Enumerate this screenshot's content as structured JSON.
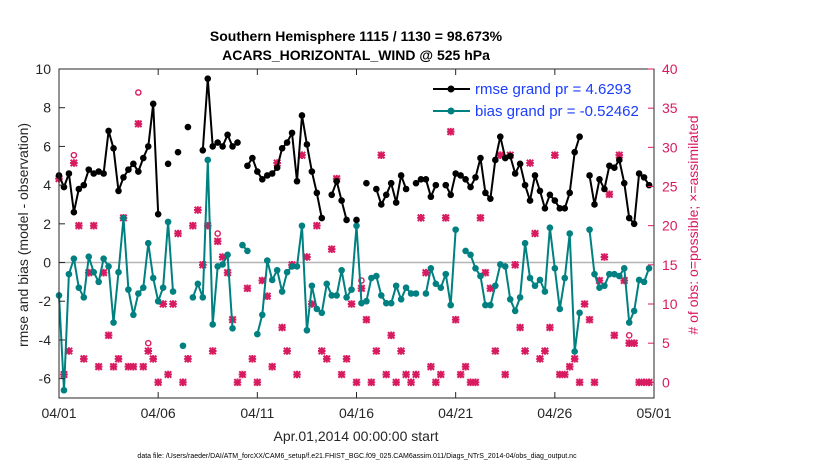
{
  "chart_data": {
    "type": "line",
    "title_line1": "Southern Hemisphere 1115 / 1130 = 98.673%",
    "title_line2": "ACARS_HORIZONTAL_WIND @ 525 hPa",
    "xlabel": "Apr.01,2014 00:00:00 start",
    "ylabel_left": "rmse and bias (model - observation)",
    "ylabel_right": "# of obs: o=possible; ×=assimilated",
    "footer": "data file: /Users/raeder/DAI/ATM_forcXX/CAM6_setup/f.e21.FHIST_BGC.f09_025.CAM6assim.011/Diags_NTrS_2014-04/obs_diag_output.nc",
    "xlim": [
      0,
      30
    ],
    "ylim_left": [
      -7,
      10
    ],
    "ylim_right": [
      -2,
      40
    ],
    "x_ticks": [
      0,
      5,
      10,
      15,
      20,
      25,
      30
    ],
    "x_tick_labels": [
      "04/01",
      "04/06",
      "04/11",
      "04/16",
      "04/21",
      "04/26",
      "05/01"
    ],
    "y_left_ticks": [
      -6,
      -4,
      -2,
      0,
      2,
      4,
      6,
      8,
      10
    ],
    "y_right_ticks": [
      0,
      5,
      10,
      15,
      20,
      25,
      30,
      35,
      40
    ],
    "grid": false,
    "legend_position": "top-right",
    "colors": {
      "rmse": "#000000",
      "bias": "#008080",
      "obs": "#d81b60",
      "zero_line": "#b4b4b4",
      "legend_text": "#1a3cff"
    },
    "series": [
      {
        "name": "rmse grand pr = 4.6293",
        "x": [
          0,
          0.25,
          0.5,
          0.75,
          1.0,
          1.25,
          1.5,
          1.75,
          2.0,
          2.25,
          2.5,
          2.75,
          3.0,
          3.25,
          3.5,
          3.75,
          4.0,
          4.25,
          4.5,
          4.75,
          5.0,
          5.25,
          5.5,
          5.75,
          6.0,
          6.25,
          6.5,
          6.75,
          7.0,
          7.25,
          7.5,
          7.75,
          8.0,
          8.25,
          8.5,
          8.75,
          9.0,
          9.25,
          9.5,
          9.75,
          10.0,
          10.25,
          10.5,
          10.75,
          11.0,
          11.25,
          11.5,
          11.75,
          12.0,
          12.25,
          12.5,
          12.75,
          13.0,
          13.25,
          13.5,
          13.75,
          14.0,
          14.25,
          14.5,
          14.75,
          15.0,
          15.25,
          15.5,
          15.75,
          16.0,
          16.25,
          16.5,
          16.75,
          17.0,
          17.25,
          17.5,
          17.75,
          18.0,
          18.25,
          18.5,
          18.75,
          19.0,
          19.25,
          19.5,
          19.75,
          20.0,
          20.25,
          20.5,
          20.75,
          21.0,
          21.25,
          21.5,
          21.75,
          22.0,
          22.25,
          22.5,
          22.75,
          23.0,
          23.25,
          23.5,
          23.75,
          24.0,
          24.25,
          24.5,
          24.75,
          25.0,
          25.25,
          25.5,
          25.75,
          26.0,
          26.25,
          26.5,
          26.75,
          27.0,
          27.25,
          27.5,
          27.75,
          28.0,
          28.25,
          28.5,
          28.75,
          29.0,
          29.25,
          29.5,
          29.75
        ],
        "y": [
          4.5,
          3.9,
          4.6,
          2.6,
          3.8,
          4.0,
          4.8,
          4.6,
          4.7,
          4.6,
          6.8,
          5.9,
          3.7,
          4.4,
          4.8,
          5.1,
          4.7,
          5.4,
          6.0,
          8.2,
          2.5,
          null,
          5.1,
          null,
          5.7,
          null,
          7.0,
          null,
          null,
          5.8,
          9.5,
          6.0,
          6.2,
          6.0,
          6.6,
          6.0,
          6.2,
          null,
          5.0,
          5.4,
          4.7,
          4.3,
          4.5,
          4.6,
          4.9,
          5.9,
          6.2,
          6.7,
          4.2,
          7.6,
          6.1,
          4.7,
          3.6,
          2.3,
          null,
          3.5,
          4.2,
          3.2,
          2.2,
          null,
          2.2,
          null,
          4.1,
          null,
          3.8,
          3.0,
          3.5,
          4.1,
          3.1,
          4.5,
          3.8,
          null,
          4.1,
          4.3,
          4.3,
          3.4,
          4.0,
          null,
          4.0,
          3.5,
          4.6,
          4.5,
          4.3,
          3.9,
          4.4,
          5.4,
          3.6,
          3.3,
          5.3,
          6.5,
          5.4,
          5.5,
          4.6,
          5.1,
          4.0,
          3.2,
          4.5,
          3.7,
          2.8,
          3.5,
          3.2,
          2.8,
          2.8,
          3.6,
          5.7,
          6.5,
          null,
          4.5,
          3.0,
          4.3,
          3.8,
          5.0,
          4.9,
          5.3,
          4.1,
          2.3,
          2.0,
          4.6,
          4.4,
          4.0
        ],
        "legend_label": "rmse grand pr = 4.6293"
      },
      {
        "name": "bias grand pr = -0.52462",
        "x": [
          0,
          0.25,
          0.5,
          0.75,
          1.0,
          1.25,
          1.5,
          1.75,
          2.0,
          2.25,
          2.5,
          2.75,
          3.0,
          3.25,
          3.5,
          3.75,
          4.0,
          4.25,
          4.5,
          4.75,
          5.0,
          5.25,
          5.5,
          5.75,
          6.0,
          6.25,
          6.5,
          6.75,
          7.0,
          7.25,
          7.5,
          7.75,
          8.0,
          8.25,
          8.5,
          8.75,
          9.0,
          9.25,
          9.5,
          9.75,
          10.0,
          10.25,
          10.5,
          10.75,
          11.0,
          11.25,
          11.5,
          11.75,
          12.0,
          12.25,
          12.5,
          12.75,
          13.0,
          13.25,
          13.5,
          13.75,
          14.0,
          14.25,
          14.5,
          14.75,
          15.0,
          15.25,
          15.5,
          15.75,
          16.0,
          16.25,
          16.5,
          16.75,
          17.0,
          17.25,
          17.5,
          17.75,
          18.0,
          18.25,
          18.5,
          18.75,
          19.0,
          19.25,
          19.5,
          19.75,
          20.0,
          20.25,
          20.5,
          20.75,
          21.0,
          21.25,
          21.5,
          21.75,
          22.0,
          22.25,
          22.5,
          22.75,
          23.0,
          23.25,
          23.5,
          23.75,
          24.0,
          24.25,
          24.5,
          24.75,
          25.0,
          25.25,
          25.5,
          25.75,
          26.0,
          26.25,
          26.5,
          26.75,
          27.0,
          27.25,
          27.5,
          27.75,
          28.0,
          28.25,
          28.5,
          28.75,
          29.0,
          29.25,
          29.5,
          29.75
        ],
        "y": [
          -1.7,
          -6.6,
          -0.6,
          0.2,
          -1.3,
          -1.8,
          0.3,
          -0.5,
          -1.0,
          0.2,
          -0.2,
          -3.1,
          -0.5,
          2.3,
          -1.4,
          -2.7,
          -1.6,
          -1.3,
          1.0,
          -0.8,
          -2.0,
          -1.3,
          2.1,
          -1.5,
          null,
          -4.3,
          null,
          -1.8,
          -1.1,
          -1.8,
          5.3,
          -3.2,
          -0.2,
          -0.1,
          0.4,
          -3.4,
          null,
          0.9,
          0.6,
          null,
          -3.7,
          -2.7,
          0.1,
          -0.9,
          -0.4,
          -1.5,
          -0.5,
          -0.2,
          -0.2,
          1.9,
          -3.5,
          -1.2,
          -2.4,
          -2.6,
          -1.1,
          -1.7,
          -1.7,
          -0.4,
          -1.8,
          -1.4,
          1.9,
          -2.1,
          -2.0,
          -0.8,
          -0.7,
          -1.7,
          -2.1,
          -2.1,
          -1.2,
          -1.9,
          -1.3,
          -1.6,
          -1.6,
          null,
          -1.6,
          -0.3,
          -1.1,
          -1.3,
          -0.6,
          -2.2,
          1.7,
          null,
          0.6,
          0.4,
          -0.3,
          -0.7,
          -2.2,
          -2.2,
          -1.2,
          -0.1,
          -0.2,
          -1.9,
          -2.5,
          -1.8,
          1.0,
          -0.8,
          -1.2,
          -0.9,
          -1.5,
          1.8,
          -0.3,
          -2.4,
          -0.8,
          1.5,
          -4.6,
          -2.6,
          null,
          1.7,
          -0.6,
          -1.3,
          -1.2,
          -0.6,
          -0.6,
          -0.7,
          -0.3,
          -3.1,
          -2.5,
          -0.9,
          -1.0,
          -0.3
        ],
        "legend_label": "bias grand pr = -0.52462"
      },
      {
        "name": "possible",
        "marker": "circle",
        "x": [
          0,
          0.25,
          0.5,
          0.75,
          1.0,
          1.25,
          1.5,
          1.75,
          2.0,
          2.25,
          2.5,
          2.75,
          3.0,
          3.25,
          3.5,
          3.75,
          4.0,
          4.25,
          4.5,
          4.75,
          5.0,
          5.25,
          5.5,
          5.75,
          6.0,
          6.25,
          6.5,
          6.75,
          7.0,
          7.25,
          7.5,
          7.75,
          8.0,
          8.25,
          8.5,
          8.75,
          9.0,
          9.25,
          9.5,
          9.75,
          10.0,
          10.25,
          10.5,
          10.75,
          11.0,
          11.25,
          11.5,
          11.75,
          12.0,
          12.25,
          12.5,
          12.75,
          13.0,
          13.25,
          13.5,
          13.75,
          14.0,
          14.25,
          14.5,
          14.75,
          15.0,
          15.25,
          15.5,
          15.75,
          16.0,
          16.25,
          16.5,
          16.75,
          17.0,
          17.25,
          17.5,
          17.75,
          18.0,
          18.25,
          18.5,
          18.75,
          19.0,
          19.25,
          19.5,
          19.75,
          20.0,
          20.25,
          20.5,
          20.75,
          21.0,
          21.25,
          21.5,
          21.75,
          22.0,
          22.25,
          22.5,
          22.75,
          23.0,
          23.25,
          23.5,
          23.75,
          24.0,
          24.25,
          24.5,
          24.75,
          25.0,
          25.25,
          25.5,
          25.75,
          26.0,
          26.25,
          26.5,
          26.75,
          27.0,
          27.25,
          27.5,
          27.75,
          28.0,
          28.25,
          28.5,
          28.75,
          29.0,
          29.25,
          29.5,
          29.75
        ],
        "y": [
          26.0,
          1.0,
          4.0,
          29.0,
          20.0,
          3.0,
          14.0,
          20.0,
          2.0,
          14.0,
          6.0,
          2.0,
          3.0,
          21.0,
          2.0,
          2.0,
          37.0,
          2.0,
          5.0,
          3.0,
          0.0,
          10.0,
          1.0,
          10.0,
          19.0,
          0.0,
          3.0,
          20.0,
          22.0,
          15.0,
          20.0,
          4.0,
          19.0,
          16.0,
          14.0,
          8.0,
          0.0,
          1.0,
          12.0,
          3.0,
          0.0,
          13.0,
          11.0,
          2.0,
          28.0,
          7.0,
          4.0,
          15.0,
          1.0,
          29.0,
          16.0,
          10.0,
          20.0,
          4.0,
          3.0,
          17.0,
          26.0,
          1.0,
          3.0,
          10.0,
          0.0,
          13.0,
          8.0,
          0.0,
          4.0,
          29.0,
          1.0,
          6.0,
          0.0,
          4.0,
          1.0,
          0.0,
          1.0,
          21.0,
          14.0,
          2.0,
          0.0,
          1.0,
          21.0,
          32.0,
          8.0,
          1.0,
          2.0,
          0.0,
          0.0,
          21.0,
          14.0,
          12.0,
          4.0,
          29.0,
          1.0,
          29.0,
          15.0,
          7.0,
          4.0,
          28.0,
          19.0,
          3.0,
          4.0,
          7.0,
          29.0,
          1.0,
          1.0,
          2.0,
          3.0,
          0.0,
          10.0,
          8.0,
          0.0,
          13.0,
          16.0,
          24.0,
          6.0,
          29.0,
          13.0,
          6.0,
          5.0,
          0.0,
          0.0,
          0.0
        ],
        "y_note": "right axis"
      },
      {
        "name": "assimilated",
        "marker": "x",
        "x": [
          0,
          0.25,
          0.5,
          0.75,
          1.0,
          1.25,
          1.5,
          1.75,
          2.0,
          2.25,
          2.5,
          2.75,
          3.0,
          3.25,
          3.5,
          3.75,
          4.0,
          4.25,
          4.5,
          4.75,
          5.0,
          5.25,
          5.5,
          5.75,
          6.0,
          6.25,
          6.5,
          6.75,
          7.0,
          7.25,
          7.5,
          7.75,
          8.0,
          8.25,
          8.5,
          8.75,
          9.0,
          9.25,
          9.5,
          9.75,
          10.0,
          10.25,
          10.5,
          10.75,
          11.0,
          11.25,
          11.5,
          11.75,
          12.0,
          12.25,
          12.5,
          12.75,
          13.0,
          13.25,
          13.5,
          13.75,
          14.0,
          14.25,
          14.5,
          14.75,
          15.0,
          15.25,
          15.5,
          15.75,
          16.0,
          16.25,
          16.5,
          16.75,
          17.0,
          17.25,
          17.5,
          17.75,
          18.0,
          18.25,
          18.5,
          18.75,
          19.0,
          19.25,
          19.5,
          19.75,
          20.0,
          20.25,
          20.5,
          20.75,
          21.0,
          21.25,
          21.5,
          21.75,
          22.0,
          22.25,
          22.5,
          22.75,
          23.0,
          23.25,
          23.5,
          23.75,
          24.0,
          24.25,
          24.5,
          24.75,
          25.0,
          25.25,
          25.5,
          25.75,
          26.0,
          26.25,
          26.5,
          26.75,
          27.0,
          27.25,
          27.5,
          27.75,
          28.0,
          28.25,
          28.5,
          28.75,
          29.0,
          29.25,
          29.5,
          29.75
        ],
        "y": [
          26.0,
          1.0,
          4.0,
          28.0,
          20.0,
          3.0,
          14.0,
          20.0,
          2.0,
          14.0,
          6.0,
          2.0,
          3.0,
          21.0,
          2.0,
          2.0,
          33.0,
          2.0,
          4.0,
          3.0,
          0.0,
          10.0,
          1.0,
          10.0,
          19.0,
          0.0,
          3.0,
          20.0,
          22.0,
          15.0,
          20.0,
          4.0,
          18.0,
          16.0,
          14.0,
          8.0,
          0.0,
          1.0,
          12.0,
          3.0,
          0.0,
          13.0,
          11.0,
          2.0,
          28.0,
          7.0,
          4.0,
          15.0,
          1.0,
          29.0,
          16.0,
          10.0,
          20.0,
          4.0,
          3.0,
          17.0,
          26.0,
          1.0,
          3.0,
          10.0,
          0.0,
          12.0,
          8.0,
          0.0,
          4.0,
          29.0,
          1.0,
          6.0,
          0.0,
          4.0,
          1.0,
          0.0,
          1.0,
          21.0,
          14.0,
          2.0,
          0.0,
          1.0,
          21.0,
          32.0,
          8.0,
          1.0,
          2.0,
          0.0,
          0.0,
          21.0,
          14.0,
          12.0,
          4.0,
          29.0,
          1.0,
          29.0,
          15.0,
          7.0,
          4.0,
          28.0,
          19.0,
          3.0,
          4.0,
          7.0,
          29.0,
          1.0,
          1.0,
          2.0,
          3.0,
          0.0,
          10.0,
          8.0,
          0.0,
          13.0,
          16.0,
          24.0,
          6.0,
          29.0,
          13.0,
          5.0,
          5.0,
          0.0,
          0.0,
          0.0
        ],
        "y_note": "right axis"
      }
    ]
  }
}
